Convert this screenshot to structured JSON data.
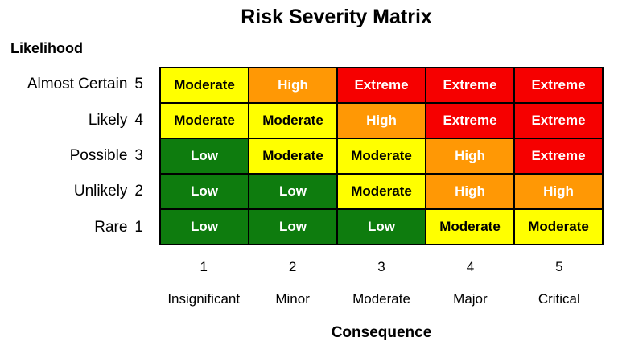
{
  "title": "Risk Severity Matrix",
  "axes": {
    "y_label": "Likelihood",
    "x_label": "Consequence"
  },
  "likelihood_levels": [
    {
      "name": "Almost Certain",
      "value": "5"
    },
    {
      "name": "Likely",
      "value": "4"
    },
    {
      "name": "Possible",
      "value": "3"
    },
    {
      "name": "Unlikely",
      "value": "2"
    },
    {
      "name": "Rare",
      "value": "1"
    }
  ],
  "consequence_levels": [
    {
      "name": "Insignificant",
      "value": "1"
    },
    {
      "name": "Minor",
      "value": "2"
    },
    {
      "name": "Moderate",
      "value": "3"
    },
    {
      "name": "Major",
      "value": "4"
    },
    {
      "name": "Critical",
      "value": "5"
    }
  ],
  "severity_styles": {
    "Low": {
      "background": "#0E7C0E",
      "text_color": "#FFFFFF"
    },
    "Moderate": {
      "background": "#FFFF00",
      "text_color": "#000000"
    },
    "High": {
      "background": "#FF9805",
      "text_color": "#FFFFFF"
    },
    "Extreme": {
      "background": "#F60000",
      "text_color": "#FFFFFF"
    }
  },
  "grid_border_color": "#000000",
  "chart_data": {
    "type": "heatmap",
    "title": "Risk Severity Matrix",
    "xlabel": "Consequence",
    "ylabel": "Likelihood",
    "x_categories": [
      "1 Insignificant",
      "2 Minor",
      "3 Moderate",
      "4 Major",
      "5 Critical"
    ],
    "y_categories": [
      "5 Almost Certain",
      "4 Likely",
      "3 Possible",
      "2 Unlikely",
      "1 Rare"
    ],
    "rows": [
      [
        "Moderate",
        "High",
        "Extreme",
        "Extreme",
        "Extreme"
      ],
      [
        "Moderate",
        "Moderate",
        "High",
        "Extreme",
        "Extreme"
      ],
      [
        "Low",
        "Moderate",
        "Moderate",
        "High",
        "Extreme"
      ],
      [
        "Low",
        "Low",
        "Moderate",
        "High",
        "High"
      ],
      [
        "Low",
        "Low",
        "Low",
        "Moderate",
        "Moderate"
      ]
    ],
    "legend": "none",
    "grid": "2px black cell borders"
  }
}
